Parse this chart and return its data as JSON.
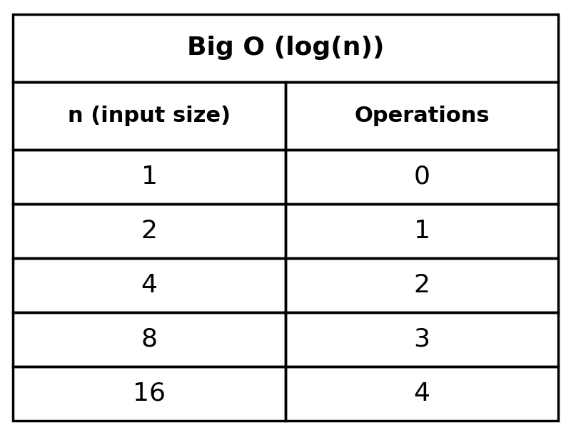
{
  "title": "Big O (log(n))",
  "col_headers": [
    "n (input size)",
    "Operations"
  ],
  "rows": [
    [
      "1",
      "0"
    ],
    [
      "2",
      "1"
    ],
    [
      "4",
      "2"
    ],
    [
      "8",
      "3"
    ],
    [
      "16",
      "4"
    ]
  ],
  "background_color": "#ffffff",
  "border_color": "#000000",
  "title_fontsize": 26,
  "header_fontsize": 22,
  "data_fontsize": 26,
  "title_fontweight": "bold",
  "header_fontweight": "bold",
  "line_width": 2.5
}
